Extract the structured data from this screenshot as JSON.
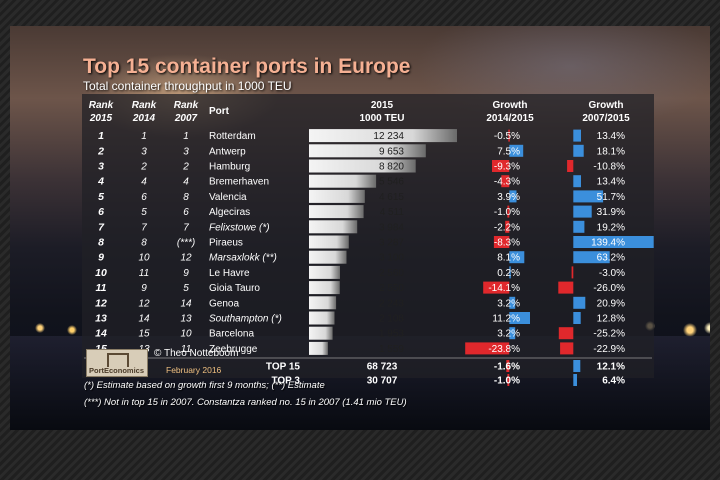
{
  "title": "Top 15 container ports in Europe",
  "subtitle": "Total container throughput in 1000 TEU",
  "headers": {
    "rank2015_line1": "Rank",
    "rank2015_line2": "2015",
    "rank2014_line1": "Rank",
    "rank2014_line2": "2014",
    "rank2007_line1": "Rank",
    "rank2007_line2": "2007",
    "port": "Port",
    "teu_line1": "2015",
    "teu_line2": "1000 TEU",
    "g1_line1": "Growth",
    "g1_line2": "2014/2015",
    "g2_line1": "Growth",
    "g2_line2": "2007/2015"
  },
  "chart_data": {
    "type": "table",
    "title": "Top 15 container ports in Europe",
    "subtitle": "Total container throughput in 1000 TEU",
    "rows": [
      {
        "rank2015": "1",
        "rank2014": "1",
        "rank2007": "1",
        "port": "Rotterdam",
        "italic": false,
        "teu": 12234,
        "teu_label": "12 234",
        "g1": -0.5,
        "g1_label": "-0.5%",
        "g2": 13.4,
        "g2_label": "13.4%"
      },
      {
        "rank2015": "2",
        "rank2014": "3",
        "rank2007": "3",
        "port": "Antwerp",
        "italic": false,
        "teu": 9653,
        "teu_label": "9 653",
        "g1": 7.5,
        "g1_label": "7.5%",
        "g2": 18.1,
        "g2_label": "18.1%"
      },
      {
        "rank2015": "3",
        "rank2014": "2",
        "rank2007": "2",
        "port": "Hamburg",
        "italic": false,
        "teu": 8820,
        "teu_label": "8 820",
        "g1": -9.3,
        "g1_label": "-9.3%",
        "g2": -10.8,
        "g2_label": "-10.8%"
      },
      {
        "rank2015": "4",
        "rank2014": "4",
        "rank2007": "4",
        "port": "Bremerhaven",
        "italic": false,
        "teu": 5546,
        "teu_label": "5 546",
        "g1": -4.3,
        "g1_label": "-4.3%",
        "g2": 13.4,
        "g2_label": "13.4%"
      },
      {
        "rank2015": "5",
        "rank2014": "6",
        "rank2007": "8",
        "port": "Valencia",
        "italic": false,
        "teu": 4615,
        "teu_label": "4 615",
        "g1": 3.9,
        "g1_label": "3.9%",
        "g2": 51.7,
        "g2_label": "51.7%"
      },
      {
        "rank2015": "6",
        "rank2014": "5",
        "rank2007": "6",
        "port": "Algeciras",
        "italic": false,
        "teu": 4511,
        "teu_label": "4 511",
        "g1": -1.0,
        "g1_label": "-1.0%",
        "g2": 31.9,
        "g2_label": "31.9%"
      },
      {
        "rank2015": "7",
        "rank2014": "7",
        "rank2007": "7",
        "port": "Felixstowe (*)",
        "italic": true,
        "teu": 3984,
        "teu_label": "3 984",
        "g1": -2.2,
        "g1_label": "-2.2%",
        "g2": 19.2,
        "g2_label": "19.2%"
      },
      {
        "rank2015": "8",
        "rank2014": "8",
        "rank2007": "(***)",
        "port": "Piraeus",
        "italic": false,
        "teu": 3287,
        "teu_label": "3 287",
        "g1": -8.3,
        "g1_label": "-8.3%",
        "g2": 139.4,
        "g2_label": "139.4%"
      },
      {
        "rank2015": "9",
        "rank2014": "10",
        "rank2007": "12",
        "port": "Marsaxlokk (**)",
        "italic": true,
        "teu": 3100,
        "teu_label": "3 100",
        "g1": 8.1,
        "g1_label": "8.1%",
        "g2": 63.2,
        "g2_label": "63.2%"
      },
      {
        "rank2015": "10",
        "rank2014": "11",
        "rank2007": "9",
        "port": "Le Havre",
        "italic": false,
        "teu": 2560,
        "teu_label": "2 560",
        "g1": 0.2,
        "g1_label": "0.2%",
        "g2": -3.0,
        "g2_label": "-3.0%"
      },
      {
        "rank2015": "11",
        "rank2014": "9",
        "rank2007": "5",
        "port": "Gioia Tauro",
        "italic": false,
        "teu": 2550,
        "teu_label": "2 550",
        "g1": -14.1,
        "g1_label": "-14.1%",
        "g2": -26.0,
        "g2_label": "-26.0%"
      },
      {
        "rank2015": "12",
        "rank2014": "12",
        "rank2007": "14",
        "port": "Genoa",
        "italic": false,
        "teu": 2243,
        "teu_label": "2 243",
        "g1": 3.2,
        "g1_label": "3.2%",
        "g2": 20.9,
        "g2_label": "20.9%"
      },
      {
        "rank2015": "13",
        "rank2014": "14",
        "rank2007": "13",
        "port": "Southampton (*)",
        "italic": true,
        "teu": 2108,
        "teu_label": "2 108",
        "g1": 11.2,
        "g1_label": "11.2%",
        "g2": 12.8,
        "g2_label": "12.8%"
      },
      {
        "rank2015": "14",
        "rank2014": "15",
        "rank2007": "10",
        "port": "Barcelona",
        "italic": false,
        "teu": 1953,
        "teu_label": "1 953",
        "g1": 3.2,
        "g1_label": "3.2%",
        "g2": -25.2,
        "g2_label": "-25.2%"
      },
      {
        "rank2015": "15",
        "rank2014": "13",
        "rank2007": "11",
        "port": "Zeebrugge",
        "italic": false,
        "teu": 1559,
        "teu_label": "1 559",
        "g1": -23.8,
        "g1_label": "-23.8%",
        "g2": -22.9,
        "g2_label": "-22.9%"
      }
    ],
    "totals": [
      {
        "label": "TOP 15",
        "teu_label": "68 723",
        "g1": -1.6,
        "g1_label": "-1.6%",
        "g2": 12.1,
        "g2_label": "12.1%"
      },
      {
        "label": "TOP 3",
        "teu_label": "30 707",
        "g1": -1.0,
        "g1_label": "-1.0%",
        "g2": 6.4,
        "g2_label": "6.4%"
      }
    ],
    "teu_scale_max": 12234,
    "g1_scale": [
      -25,
      15
    ],
    "g2_scale": [
      -30,
      140
    ],
    "colors": {
      "positive": "#3b8fdc",
      "negative": "#e0282c",
      "bar_light": "#f2f2f2",
      "bar_dark": "#6a6a6a"
    }
  },
  "notes": {
    "line1": "(*) Estimate based on growth first 9 months; (**) Estimate",
    "line2": "(***) Not in top 15 in 2007. Constantza ranked no. 15 in 2007 (1.41 mio TEU)"
  },
  "logo_text": "PortEconomics",
  "credit": "© Theo Notteboom",
  "date": "February 2016"
}
